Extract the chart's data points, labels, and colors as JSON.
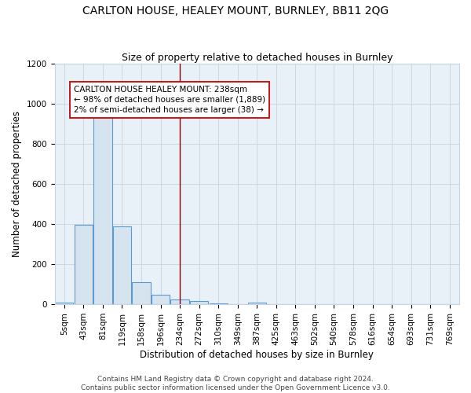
{
  "title": "CARLTON HOUSE, HEALEY MOUNT, BURNLEY, BB11 2QG",
  "subtitle": "Size of property relative to detached houses in Burnley",
  "xlabel": "Distribution of detached houses by size in Burnley",
  "ylabel": "Number of detached properties",
  "bar_labels": [
    "5sqm",
    "43sqm",
    "81sqm",
    "119sqm",
    "158sqm",
    "196sqm",
    "234sqm",
    "272sqm",
    "310sqm",
    "349sqm",
    "387sqm",
    "425sqm",
    "463sqm",
    "502sqm",
    "540sqm",
    "578sqm",
    "616sqm",
    "654sqm",
    "693sqm",
    "731sqm",
    "769sqm"
  ],
  "bar_values": [
    10,
    395,
    950,
    390,
    110,
    48,
    25,
    18,
    5,
    0,
    8,
    0,
    0,
    0,
    0,
    0,
    0,
    0,
    0,
    0,
    0
  ],
  "bar_color": "#d6e4f0",
  "bar_edge_color": "#5b9bd5",
  "grid_color": "#c8d4e0",
  "background_color": "#ffffff",
  "plot_bg_color": "#e8f0f8",
  "vline_x_index": 6,
  "vline_color": "#8b0000",
  "annotation_text": "CARLTON HOUSE HEALEY MOUNT: 238sqm\n← 98% of detached houses are smaller (1,889)\n2% of semi-detached houses are larger (38) →",
  "annotation_box_color": "#ffffff",
  "annotation_box_edge_color": "#cc0000",
  "ylim": [
    0,
    1200
  ],
  "yticks": [
    0,
    200,
    400,
    600,
    800,
    1000,
    1200
  ],
  "footer_line1": "Contains HM Land Registry data © Crown copyright and database right 2024.",
  "footer_line2": "Contains public sector information licensed under the Open Government Licence v3.0.",
  "title_fontsize": 10,
  "subtitle_fontsize": 9,
  "axis_label_fontsize": 8.5,
  "tick_fontsize": 7.5,
  "annotation_fontsize": 7.5,
  "footer_fontsize": 6.5
}
